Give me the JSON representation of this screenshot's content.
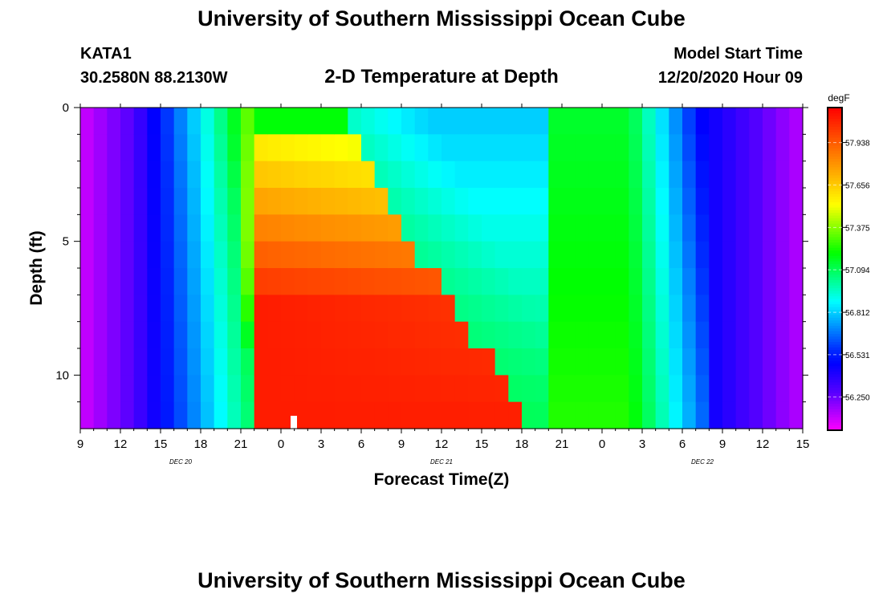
{
  "page": {
    "title_top": "University of Southern Mississippi Ocean Cube",
    "title_bottom": "University of Southern Mississippi Ocean Cube",
    "station": "KATA1",
    "coordinates": "30.2580N 88.2130W",
    "start_label": "Model Start Time",
    "start_value": "12/20/2020 Hour 09"
  },
  "chart_data": {
    "type": "heatmap",
    "title": "2-D Temperature at Depth",
    "xlabel": "Forecast Time(Z)",
    "ylabel": "Depth (ft)",
    "x_start_hour": 9,
    "x_end_hour": 63,
    "xlim": [
      9,
      63
    ],
    "ylim": [
      0,
      12
    ],
    "x_tick_hours": [
      9,
      12,
      15,
      18,
      21,
      24,
      27,
      30,
      33,
      36,
      39,
      42,
      45,
      48,
      51,
      54,
      57,
      60,
      63
    ],
    "x_tick_labels": [
      "9",
      "12",
      "15",
      "18",
      "21",
      "0",
      "3",
      "6",
      "9",
      "12",
      "15",
      "18",
      "21",
      "0",
      "3",
      "6",
      "9",
      "12",
      "15"
    ],
    "y_ticks": [
      0,
      5,
      10
    ],
    "y_tick_labels": [
      "0",
      "5",
      "10"
    ],
    "date_labels": [
      {
        "hour": 16.5,
        "label": "DEC 20"
      },
      {
        "hour": 36,
        "label": "DEC 21"
      },
      {
        "hour": 55.5,
        "label": "DEC 22"
      }
    ],
    "colorbar": {
      "unit": "degF",
      "min": 56.03,
      "max": 58.17,
      "tick_values": [
        57.938,
        57.656,
        57.375,
        57.094,
        56.812,
        56.531,
        56.25
      ],
      "tick_labels": [
        "57.938",
        "57.656",
        "57.375",
        "57.094",
        "56.812",
        "56.531",
        "56.250"
      ]
    },
    "grid": false,
    "legend": "right"
  }
}
